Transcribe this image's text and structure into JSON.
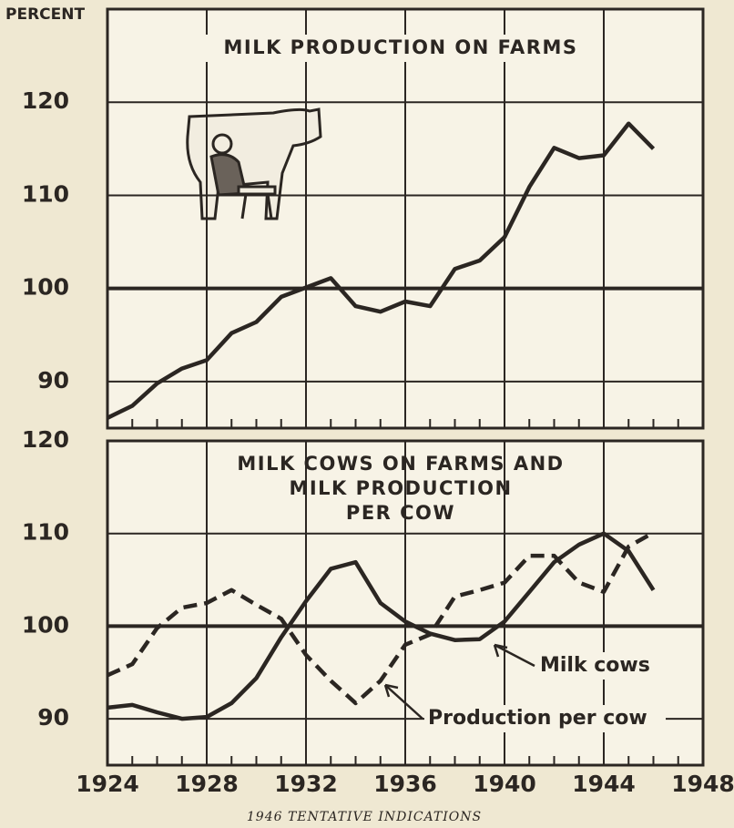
{
  "chart_data": [
    {
      "type": "line",
      "title": "MILK PRODUCTION ON FARMS",
      "ylabel": "PERCENT",
      "xlim": [
        1924,
        1948
      ],
      "ylim": [
        85,
        130
      ],
      "yticks": [
        90,
        100,
        110,
        120
      ],
      "grid": true,
      "x": [
        1924,
        1925,
        1926,
        1927,
        1928,
        1929,
        1930,
        1931,
        1932,
        1933,
        1934,
        1935,
        1936,
        1937,
        1938,
        1939,
        1940,
        1941,
        1942,
        1943,
        1944,
        1945,
        1946
      ],
      "series": [
        {
          "name": "Milk production",
          "color": "#2b2622",
          "style": "solid",
          "values": [
            86.1,
            87.4,
            89.8,
            91.4,
            92.3,
            95.2,
            96.4,
            99.1,
            100.1,
            101.1,
            98.1,
            97.5,
            98.6,
            98.1,
            102.1,
            103.0,
            105.5,
            110.9,
            115.1,
            114.0,
            114.3,
            117.7,
            115.0
          ]
        }
      ]
    },
    {
      "type": "line",
      "title": [
        "MILK COWS ON FARMS AND",
        "MILK PRODUCTION",
        "PER COW"
      ],
      "xlim": [
        1924,
        1948
      ],
      "xticks": [
        1924,
        1928,
        1932,
        1936,
        1940,
        1944,
        1948
      ],
      "ylim": [
        85,
        120
      ],
      "yticks": [
        90,
        100,
        110,
        120
      ],
      "grid": true,
      "x": [
        1924,
        1925,
        1926,
        1927,
        1928,
        1929,
        1930,
        1931,
        1932,
        1933,
        1934,
        1935,
        1936,
        1937,
        1938,
        1939,
        1940,
        1941,
        1942,
        1943,
        1944,
        1945,
        1946
      ],
      "series": [
        {
          "name": "Milk cows",
          "color": "#2b2622",
          "style": "solid",
          "values": [
            91.2,
            91.5,
            90.7,
            90.0,
            90.2,
            91.7,
            94.4,
            98.8,
            102.7,
            106.2,
            106.9,
            102.5,
            100.5,
            99.2,
            98.5,
            98.6,
            100.5,
            103.7,
            106.9,
            108.8,
            110.0,
            108.1,
            103.9
          ]
        },
        {
          "name": "Production per cow",
          "color": "#2b2622",
          "style": "dashed",
          "values": [
            94.7,
            95.9,
            99.8,
            102.0,
            102.5,
            103.9,
            102.3,
            100.8,
            96.9,
            94.1,
            91.7,
            94.1,
            98.0,
            99.1,
            103.2,
            103.9,
            104.7,
            107.6,
            107.6,
            104.7,
            103.7,
            108.6,
            110.1
          ]
        }
      ],
      "note": "1946 TENTATIVE INDICATIONS"
    }
  ]
}
